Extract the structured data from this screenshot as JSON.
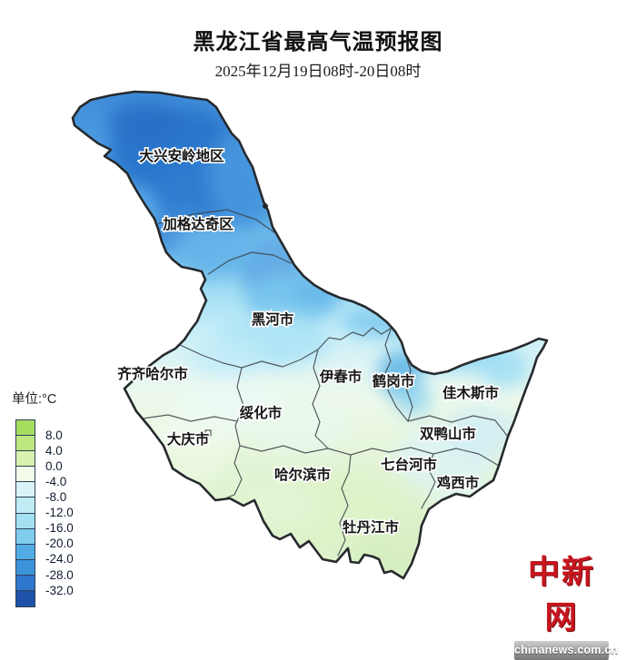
{
  "header": {
    "title": "黑龙江省最高气温预报图",
    "subtitle": "2025年12月19日08时-20日08时"
  },
  "legend": {
    "unit_label": "单位:°C",
    "ticks": [
      "8.0",
      "4.0",
      "0.0",
      "-4.0",
      "-8.0",
      "-12.0",
      "-16.0",
      "-20.0",
      "-24.0",
      "-28.0",
      "-32.0"
    ],
    "colors": [
      "#a5dd5e",
      "#bce77f",
      "#d8f1ae",
      "#f2fbe9",
      "#d9f3f6",
      "#c0ecf6",
      "#a2e0f2",
      "#7ecdec",
      "#54ace4",
      "#3d93da",
      "#2f77cc",
      "#1d52a8"
    ]
  },
  "map": {
    "regions": [
      {
        "label": "大兴安岭地区"
      },
      {
        "label": "加格达奇区"
      },
      {
        "label": "黑河市"
      },
      {
        "label": "齐齐哈尔市"
      },
      {
        "label": "伊春市"
      },
      {
        "label": "鹤岗市"
      },
      {
        "label": "佳木斯市"
      },
      {
        "label": "绥化市"
      },
      {
        "label": "大庆市"
      },
      {
        "label": "双鸭山市"
      },
      {
        "label": "七台河市"
      },
      {
        "label": "哈尔滨市"
      },
      {
        "label": "鸡西市"
      },
      {
        "label": "牡丹江市"
      }
    ]
  },
  "watermark": {
    "logo_text": "中新网",
    "logo_url_text": "chinanews.com.cn"
  }
}
